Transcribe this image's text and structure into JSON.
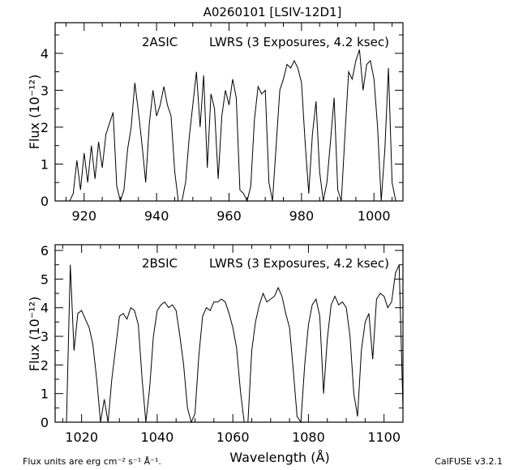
{
  "title": "A0260101 [LSIV-12D1]",
  "footer_left": "Flux units are erg cm⁻² s⁻¹ Å⁻¹.",
  "footer_right": "CalFUSE v3.2.1",
  "xlabel": "Wavelength (Å)",
  "chart_data": [
    {
      "type": "line",
      "annotation_channel": "2ASIC",
      "annotation_info": "LWRS (3 Exposures,  4.2 ksec)",
      "ylabel": "Flux (10⁻¹²)",
      "xlim": [
        912,
        1008
      ],
      "ylim": [
        0,
        4.83
      ],
      "xticks": [
        920,
        940,
        960,
        980,
        1000
      ],
      "yticks": [
        0,
        1,
        2,
        3,
        4
      ],
      "x_start": 912,
      "x_step": 1,
      "values": [
        0,
        0,
        0,
        0,
        0,
        0.2,
        1.1,
        0.3,
        1.3,
        0.5,
        1.5,
        0.6,
        1.6,
        0.9,
        1.8,
        2.1,
        2.4,
        0.4,
        0,
        0.3,
        1.4,
        2.0,
        3.2,
        2.4,
        1.5,
        0.5,
        2.1,
        3.0,
        2.3,
        2.6,
        3.1,
        2.6,
        2.3,
        0.8,
        0,
        0,
        0.5,
        1.7,
        2.6,
        3.5,
        2.0,
        3.4,
        0.9,
        2.9,
        2.5,
        0.6,
        2.3,
        3.0,
        2.6,
        3.3,
        2.8,
        0.3,
        0.2,
        0,
        0.4,
        2.2,
        3.1,
        2.9,
        3.0,
        0.5,
        0,
        1.5,
        3.0,
        3.3,
        3.7,
        3.6,
        3.8,
        3.6,
        3.2,
        1.6,
        0.2,
        1.8,
        2.7,
        0.8,
        0,
        0.5,
        1.6,
        2.8,
        0.3,
        0,
        1.8,
        3.5,
        3.3,
        3.8,
        4.1,
        3.0,
        3.7,
        3.8,
        3.3,
        2.0,
        0,
        1.4,
        3.6,
        0.5,
        0
      ]
    },
    {
      "type": "line",
      "annotation_channel": "2BSIC",
      "annotation_info": "LWRS (3 Exposures,  4.2 ksec)",
      "ylabel": "Flux (10⁻¹²)",
      "xlim": [
        1013,
        1105
      ],
      "ylim": [
        0,
        6.2
      ],
      "xticks": [
        1020,
        1040,
        1060,
        1080,
        1100
      ],
      "yticks": [
        0,
        1,
        2,
        3,
        4,
        5,
        6
      ],
      "x_start": 1016,
      "x_step": 1,
      "values": [
        0,
        5.5,
        2.5,
        3.8,
        3.9,
        3.6,
        3.3,
        2.7,
        1.5,
        0,
        0.8,
        0,
        1.5,
        2.6,
        3.7,
        3.8,
        3.6,
        4.0,
        3.9,
        3.4,
        1.5,
        0,
        1.2,
        3.0,
        3.9,
        4.1,
        4.2,
        4.0,
        4.1,
        3.9,
        3.0,
        2.0,
        0.5,
        0,
        0.3,
        2.3,
        3.7,
        4.0,
        3.9,
        4.2,
        4.2,
        4.3,
        4.2,
        3.8,
        3.3,
        2.6,
        1.1,
        0,
        0,
        2.5,
        3.5,
        4.1,
        4.5,
        4.2,
        4.3,
        4.4,
        4.7,
        4.4,
        3.8,
        3.3,
        1.8,
        0.2,
        0,
        2.0,
        3.4,
        4.1,
        4.3,
        3.7,
        1.0,
        2.9,
        4.1,
        4.4,
        4.1,
        4.2,
        4.0,
        3.0,
        1.0,
        0.2,
        2.5,
        3.5,
        3.8,
        2.2,
        4.3,
        4.5,
        4.4,
        4.0,
        4.2,
        5.2,
        5.5,
        0.5
      ]
    }
  ]
}
